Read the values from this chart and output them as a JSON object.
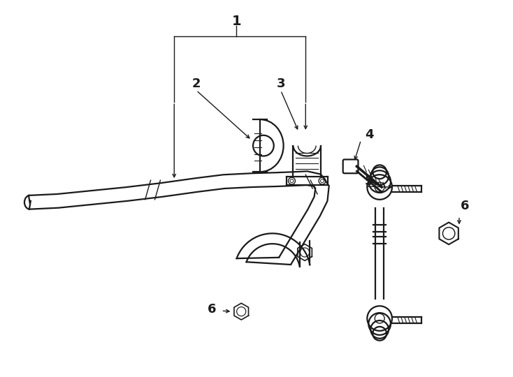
{
  "bg_color": "#ffffff",
  "line_color": "#1a1a1a",
  "fig_width": 7.34,
  "fig_height": 5.4,
  "dpi": 100,
  "lw_main": 1.6,
  "lw_thin": 1.0,
  "lw_thick": 2.2,
  "font_size": 12,
  "font_bold": "bold"
}
